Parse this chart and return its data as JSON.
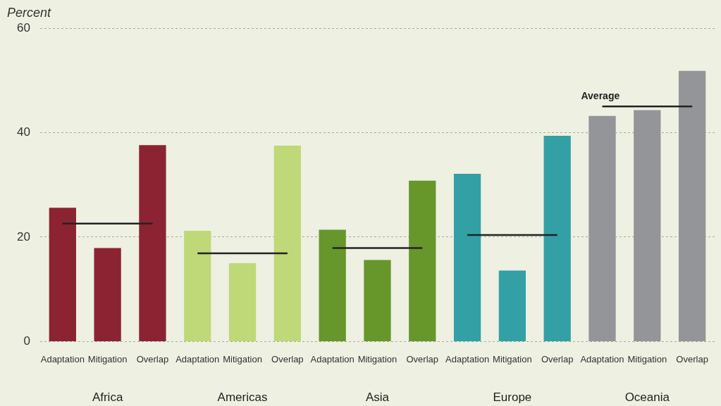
{
  "chart_data": {
    "type": "bar",
    "ylabel": "Percent",
    "categories": [
      "Adaptation",
      "Mitigation",
      "Overlap",
      "Adaptation",
      "Mitigation",
      "Overlap",
      "Adaptation",
      "Mitigation",
      "Overlap",
      "Adaptation",
      "Mitigation",
      "Overlap",
      "Adaptation",
      "Mitigation",
      "Overlap"
    ],
    "series": [
      {
        "colors": [
          "#8b2332",
          "#8b2332",
          "#8b2332",
          "#bfd978",
          "#bfd978",
          "#bfd978",
          "#67962b",
          "#67962b",
          "#67962b",
          "#33a0a6",
          "#33a0a6",
          "#33a0a6",
          "#939598",
          "#939598",
          "#939598"
        ],
        "values": [
          25.6,
          17.9,
          37.6,
          21.2,
          15.0,
          37.5,
          21.4,
          15.6,
          30.8,
          32.1,
          13.6,
          39.4,
          43.2,
          44.3,
          51.8
        ]
      },
      {
        "type": "line",
        "name": "Average",
        "color": "#222222",
        "values": [
          22.6,
          22.6,
          22.6,
          16.9,
          16.9,
          16.9,
          17.9,
          17.9,
          17.9,
          20.4,
          20.4,
          20.4,
          45.0,
          45.0,
          45.0
        ]
      }
    ],
    "annotations": [
      "Africa",
      "Americas",
      "Asia",
      "Europe",
      "Oceania"
    ],
    "ylim": [
      0,
      60
    ],
    "yticks": [
      0,
      20,
      40,
      60
    ],
    "grid": "y",
    "legend": false,
    "marker": "none",
    "line_style": "solid"
  }
}
